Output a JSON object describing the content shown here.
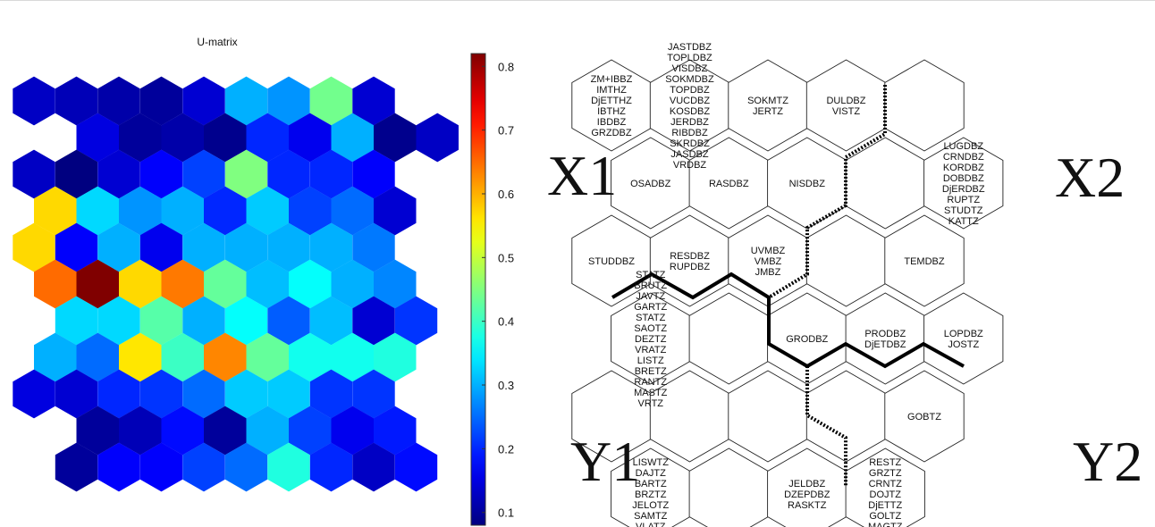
{
  "chart_data": [
    {
      "type": "heatmap",
      "title": "U-matrix",
      "grid": "hexagonal",
      "rows": 11,
      "cols": 10,
      "colormap": "jet",
      "color_range": [
        0.08,
        0.82
      ],
      "colorbar_ticks": [
        0.1,
        0.2,
        0.3,
        0.4,
        0.5,
        0.6,
        0.7,
        0.8
      ],
      "values": [
        [
          0.13,
          0.12,
          0.11,
          0.1,
          0.14,
          0.3,
          0.28,
          0.44,
          0.14,
          null
        ],
        [
          null,
          0.15,
          0.1,
          0.11,
          0.09,
          0.2,
          0.16,
          0.3,
          0.09,
          0.13
        ],
        [
          0.13,
          0.06,
          0.14,
          0.17,
          0.22,
          0.45,
          0.2,
          0.2,
          0.17,
          null
        ],
        [
          0.57,
          0.33,
          0.28,
          0.3,
          0.2,
          0.32,
          0.22,
          0.25,
          0.14,
          null
        ],
        [
          0.57,
          0.17,
          0.3,
          0.16,
          0.3,
          0.3,
          0.3,
          0.3,
          0.26,
          null
        ],
        [
          0.65,
          0.82,
          0.57,
          0.64,
          0.43,
          0.31,
          0.36,
          0.3,
          0.27,
          null
        ],
        [
          null,
          0.33,
          0.33,
          0.42,
          0.3,
          0.36,
          0.24,
          0.31,
          0.14,
          0.21
        ],
        [
          0.3,
          0.25,
          0.56,
          0.4,
          0.63,
          0.43,
          0.37,
          0.37,
          0.38,
          null
        ],
        [
          0.15,
          0.14,
          0.2,
          0.21,
          0.25,
          0.32,
          0.32,
          0.21,
          0.21,
          null
        ],
        [
          null,
          0.1,
          0.12,
          0.18,
          0.1,
          0.3,
          0.22,
          0.16,
          0.19,
          null
        ],
        [
          null,
          0.1,
          0.17,
          0.17,
          0.22,
          0.25,
          0.38,
          0.2,
          0.13,
          0.18
        ]
      ]
    },
    {
      "type": "hexagonal-cluster-map",
      "corner_labels": {
        "top_left": "X1",
        "top_right": "X2",
        "bottom_left": "Y1",
        "bottom_right": "Y2"
      },
      "cells": [
        {
          "labels": [
            "ZM+IBBZ",
            "IMTHZ",
            "DjETTHZ",
            "IBTHZ",
            "IBDBZ",
            "GRZDBZ"
          ]
        },
        {
          "labels": [
            "JASTDBZ",
            "TOPLDBZ",
            "VISDBZ",
            "SOKMDBZ",
            "TOPDBZ",
            "VUCDBZ",
            "KOSDBZ",
            "JERDBZ",
            "RIBDBZ",
            "SKRDBZ",
            "JASDBZ",
            "VRDBZ"
          ]
        },
        {
          "labels": [
            "SOKMTZ",
            "JERTZ"
          ]
        },
        {
          "labels": [
            "DULDBZ",
            "VISTZ"
          ]
        },
        {
          "labels": []
        },
        {
          "labels": [
            "OSADBZ"
          ]
        },
        {
          "labels": [
            "RASDBZ"
          ]
        },
        {
          "labels": [
            "NISDBZ"
          ]
        },
        {
          "labels": []
        },
        {
          "labels": [
            "LUGDBZ",
            "CRNDBZ",
            "KORDBZ",
            "DOBDBZ",
            "DjERDBZ",
            "RUPTZ",
            "STUDTZ",
            "KATTZ"
          ]
        },
        {
          "labels": [
            "STUDDBZ"
          ]
        },
        {
          "labels": [
            "RESDBZ",
            "RUPDBZ"
          ]
        },
        {
          "labels": [
            "UVMBZ",
            "VMBZ",
            "JMBZ"
          ]
        },
        {
          "labels": []
        },
        {
          "labels": [
            "TEMDBZ"
          ]
        },
        {
          "labels": [
            "STATZ",
            "BRUTZ",
            "JAVTZ",
            "GARTZ",
            "STATZ",
            "SAOTZ",
            "DEZTZ",
            "VRATZ",
            "LISTZ",
            "BRETZ",
            "RANTZ",
            "MASTZ",
            "VRTZ"
          ]
        },
        {
          "labels": []
        },
        {
          "labels": [
            "GRODBZ"
          ]
        },
        {
          "labels": [
            "PRODBZ",
            "DjETDBZ"
          ]
        },
        {
          "labels": [
            "LOPDBZ",
            "JOSTZ"
          ]
        },
        {
          "labels": []
        },
        {
          "labels": []
        },
        {
          "labels": []
        },
        {
          "labels": []
        },
        {
          "labels": [
            "GOBTZ"
          ]
        },
        {
          "labels": [
            "LISWTZ",
            "DAJTZ",
            "BARTZ",
            "BRZTZ",
            "JELOTZ",
            "SAMTZ",
            "VLATZ"
          ]
        },
        {
          "labels": []
        },
        {
          "labels": [
            "JELDBZ",
            "DZEPDBZ",
            "RASKTZ"
          ]
        },
        {
          "labels": [
            "RESTZ",
            "GRZTZ",
            "CRNTZ",
            "DOJTZ",
            "DjETTZ",
            "GOLTZ",
            "MAGTZ"
          ]
        }
      ]
    }
  ]
}
